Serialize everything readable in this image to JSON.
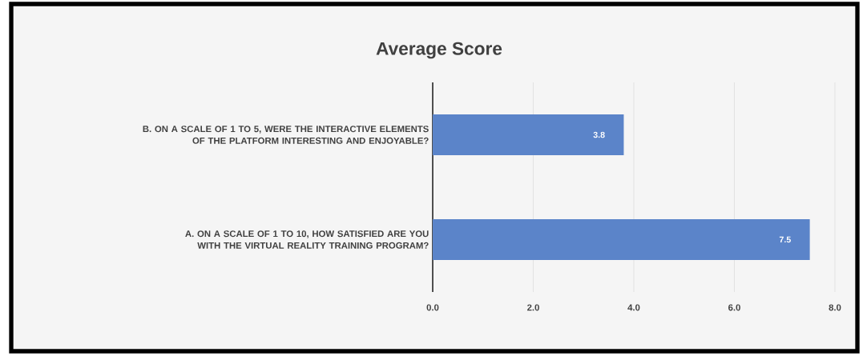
{
  "chart_data": {
    "type": "bar",
    "orientation": "horizontal",
    "title": "Average Score",
    "categories": [
      "B. ON A SCALE OF 1 TO 5, WERE THE INTERACTIVE ELEMENTS OF THE PLATFORM INTERESTING AND ENJOYABLE?",
      "A. ON A SCALE OF 1 TO 10, HOW SATISFIED ARE YOU WITH THE VIRTUAL REALITY TRAINING PROGRAM?"
    ],
    "values": [
      3.8,
      7.5
    ],
    "color": "#5b84c9",
    "data_labels": true,
    "grid": "x",
    "xlim": [
      0,
      8
    ],
    "xticks": [
      {
        "value": 0,
        "label": "0.0"
      },
      {
        "value": 2,
        "label": "2.0"
      },
      {
        "value": 4,
        "label": "4.0"
      },
      {
        "value": 6,
        "label": "6.0"
      },
      {
        "value": 8,
        "label": "8.0"
      }
    ]
  }
}
